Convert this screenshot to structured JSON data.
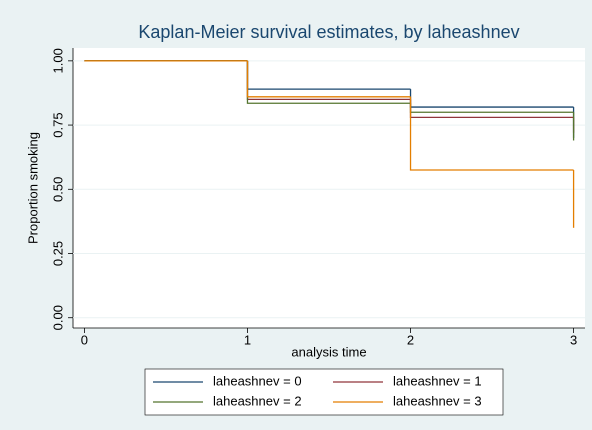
{
  "chart_data": {
    "type": "step",
    "title": "Kaplan-Meier survival estimates, by laheashnev",
    "x_label": "analysis time",
    "y_label": "Proportion smoking",
    "x": [
      0,
      1,
      2,
      3
    ],
    "series": [
      {
        "name": "laheashnev = 0",
        "color": "#1a476f",
        "values": [
          1,
          0.89,
          0.82,
          0.7
        ]
      },
      {
        "name": "laheashnev = 1",
        "color": "#90353b",
        "values": [
          1,
          0.85,
          0.78,
          0.72
        ]
      },
      {
        "name": "laheashnev = 2",
        "color": "#55752f",
        "values": [
          1,
          0.835,
          0.8,
          0.69
        ]
      },
      {
        "name": "laheashnev = 3",
        "color": "#e37e00",
        "values": [
          1,
          0.86,
          0.575,
          0.35
        ]
      }
    ],
    "xlim": [
      -0.07,
      3.07
    ],
    "ylim": [
      -0.04,
      1.05
    ],
    "xticks": [
      0,
      1,
      2,
      3
    ],
    "yticks": [
      {
        "value": 0,
        "label": "0.00"
      },
      {
        "value": 0.25,
        "label": "0.25"
      },
      {
        "value": 0.5,
        "label": "0.50"
      },
      {
        "value": 0.75,
        "label": "0.75"
      },
      {
        "value": 1,
        "label": "1.00"
      }
    ],
    "grid": true,
    "legend_position": "bottom"
  }
}
